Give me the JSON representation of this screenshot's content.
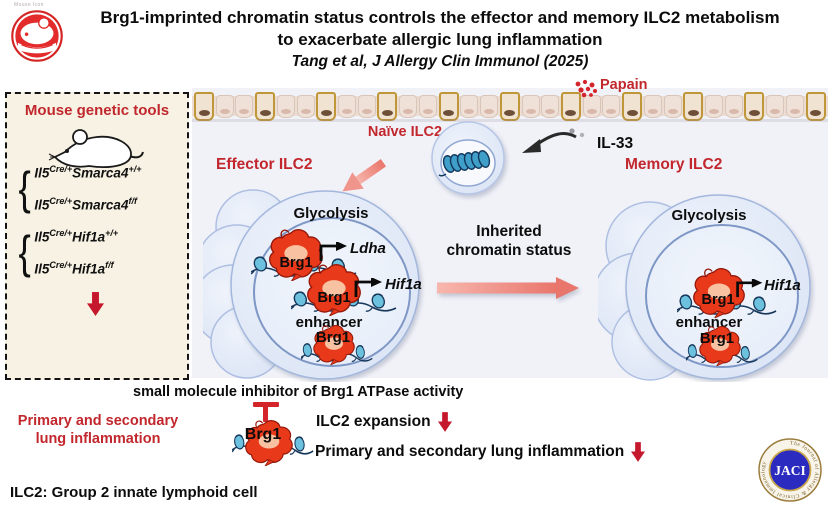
{
  "colors": {
    "label_red": "#c1272d",
    "brg1_red": "#e8391b",
    "chromatin_teal": "#6cc2de",
    "arrow_pink": "#ee8a80",
    "down_arrow_red": "#c5182c",
    "diagram_background": "#f1f2f8",
    "tools_box_background": "#f7f2e3",
    "jaci_blue": "#2b2bbf"
  },
  "header": {
    "logo_caption": "Mouse Icon",
    "title_line1": "Brg1-imprinted chromatin status controls the effector and memory ILC2 metabolism",
    "title_line2": "to exacerbate allergic lung inflammation",
    "citation": "Tang et al, J Allergy Clin Immunol (2025)"
  },
  "genetic_tools": {
    "title": "Mouse genetic tools",
    "genotypes": [
      {
        "base": "Il5",
        "sup1": "Cre/+",
        "gene": "Smarca4",
        "sup2": "+/+"
      },
      {
        "base": "Il5",
        "sup1": "Cre/+",
        "gene": "Smarca4",
        "sup2": "f/f"
      },
      {
        "base": "Il5",
        "sup1": "Cre/+",
        "gene": "Hif1a",
        "sup2": "+/+"
      },
      {
        "base": "Il5",
        "sup1": "Cre/+",
        "gene": "Hif1a",
        "sup2": "f/f"
      }
    ],
    "outcome": "Primary and secondary lung inflammation"
  },
  "airway": {
    "allergen": "Papain",
    "cytokine": "IL-33"
  },
  "cells": {
    "naive_label": "Naïve ILC2",
    "effector_label": "Effector ILC2",
    "memory_label": "Memory ILC2",
    "glycolysis": "Glycolysis",
    "brg1": "Brg1",
    "enhancer": "enhancer",
    "gene_ldha": "Ldha",
    "gene_hif1a": "Hif1a",
    "transition_line1": "Inherited",
    "transition_line2": "chromatin status"
  },
  "inhibitor": {
    "text": "small molecule inhibitor of Brg1 ATPase activity",
    "brg1": "Brg1",
    "effect1": "ILC2 expansion",
    "effect2": "Primary and secondary lung inflammation"
  },
  "footer": {
    "definition": "ILC2: Group 2 innate lymphoid cell",
    "journal_abbr": "JACI",
    "journal_ring_text": "The Journal of Allergy & Clinical Immunology"
  }
}
